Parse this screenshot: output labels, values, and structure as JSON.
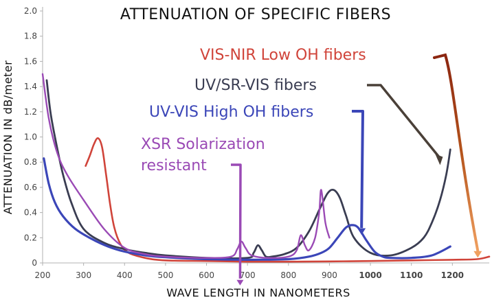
{
  "chart_data": {
    "type": "line",
    "title": "ATTENUATION OF SPECIFIC FIBERS",
    "xlabel": "WAVE LENGTH IN NANOMETERS",
    "ylabel": "ATTENUATION IN dB/meter",
    "xlim": [
      200,
      1290
    ],
    "ylim": [
      0,
      2.0
    ],
    "x_ticks": [
      200,
      300,
      400,
      500,
      600,
      700,
      800,
      900,
      1000,
      1100,
      1200
    ],
    "x_tick_labels": [
      "200",
      "300",
      "400",
      "500",
      "600",
      "700",
      "800",
      "900",
      "1000",
      "1100",
      "1200"
    ],
    "y_ticks": [
      0,
      0.2,
      0.4,
      0.6,
      0.8,
      1.0,
      1.2,
      1.4,
      1.6,
      1.8,
      2.0
    ],
    "y_tick_labels": [
      "0",
      "0.2",
      "0.4",
      "0.6",
      "0.8",
      "1.0",
      "1.2",
      "1.4",
      "1.6",
      "1.8",
      "2.0"
    ],
    "grid": false,
    "series": [
      {
        "name": "VIS-NIR Low OH fibers",
        "color": "#d0443a",
        "x": [
          305,
          315,
          325,
          335,
          345,
          355,
          365,
          375,
          390,
          410,
          450,
          500,
          600,
          700,
          800,
          900,
          1000,
          1100,
          1200,
          1260,
          1290
        ],
        "y": [
          0.77,
          0.85,
          0.94,
          0.99,
          0.92,
          0.7,
          0.46,
          0.28,
          0.15,
          0.08,
          0.04,
          0.02,
          0.015,
          0.01,
          0.01,
          0.012,
          0.015,
          0.02,
          0.025,
          0.03,
          0.05
        ]
      },
      {
        "name": "UV/SR-VIS fibers",
        "color": "#3a3d52",
        "x": [
          210,
          220,
          235,
          250,
          270,
          300,
          350,
          400,
          450,
          500,
          600,
          700,
          715,
          725,
          735,
          745,
          760,
          790,
          820,
          850,
          875,
          895,
          910,
          925,
          940,
          960,
          1000,
          1050,
          1100,
          1130,
          1150,
          1170,
          1185,
          1195
        ],
        "y": [
          1.45,
          1.18,
          0.92,
          0.7,
          0.48,
          0.27,
          0.16,
          0.11,
          0.08,
          0.06,
          0.04,
          0.04,
          0.08,
          0.14,
          0.1,
          0.05,
          0.05,
          0.07,
          0.12,
          0.25,
          0.42,
          0.55,
          0.58,
          0.52,
          0.38,
          0.2,
          0.08,
          0.06,
          0.12,
          0.2,
          0.32,
          0.5,
          0.7,
          0.9
        ]
      },
      {
        "name": "UV-VIS High OH fibers",
        "color": "#3b46b8",
        "x": [
          203,
          215,
          230,
          250,
          280,
          320,
          360,
          400,
          450,
          500,
          600,
          700,
          800,
          850,
          880,
          900,
          920,
          940,
          955,
          970,
          990,
          1010,
          1030,
          1050,
          1100,
          1150,
          1195
        ],
        "y": [
          0.83,
          0.63,
          0.48,
          0.37,
          0.27,
          0.19,
          0.13,
          0.09,
          0.06,
          0.045,
          0.03,
          0.025,
          0.03,
          0.05,
          0.08,
          0.12,
          0.2,
          0.28,
          0.3,
          0.28,
          0.18,
          0.09,
          0.05,
          0.04,
          0.04,
          0.06,
          0.13
        ]
      },
      {
        "name": "XSR Solarization resistant",
        "color": "#9a4ab5",
        "x": [
          200,
          215,
          235,
          260,
          300,
          350,
          400,
          450,
          500,
          600,
          660,
          675,
          685,
          695,
          710,
          750,
          800,
          820,
          830,
          840,
          850,
          865,
          875,
          880,
          890,
          900
        ],
        "y": [
          1.5,
          1.15,
          0.88,
          0.7,
          0.5,
          0.27,
          0.12,
          0.07,
          0.05,
          0.04,
          0.05,
          0.11,
          0.17,
          0.12,
          0.06,
          0.04,
          0.05,
          0.1,
          0.22,
          0.14,
          0.1,
          0.2,
          0.4,
          0.58,
          0.32,
          0.2
        ]
      }
    ],
    "annotations": [
      {
        "text": "VIS-NIR Low OH fibers",
        "color": "#d0443a",
        "arrow_color": "#8b3a0e",
        "target_x": 1262,
        "target_y": 0.02
      },
      {
        "text": "UV/SR-VIS fibers",
        "color": "#3a3d52",
        "arrow_color": "#4a4038",
        "target_x": 1170,
        "target_y": 0.82
      },
      {
        "text": "UV-VIS High OH fibers",
        "color": "#3b46b8",
        "arrow_color": "#3b46b8",
        "target_x": 975,
        "target_y": 0.55
      },
      {
        "lines": [
          "XSR Solarization",
          "resistant"
        ],
        "color": "#9a4ab5",
        "arrow_color": "#9a4ab5",
        "target_x": 682,
        "target_y": 0.53
      }
    ]
  }
}
